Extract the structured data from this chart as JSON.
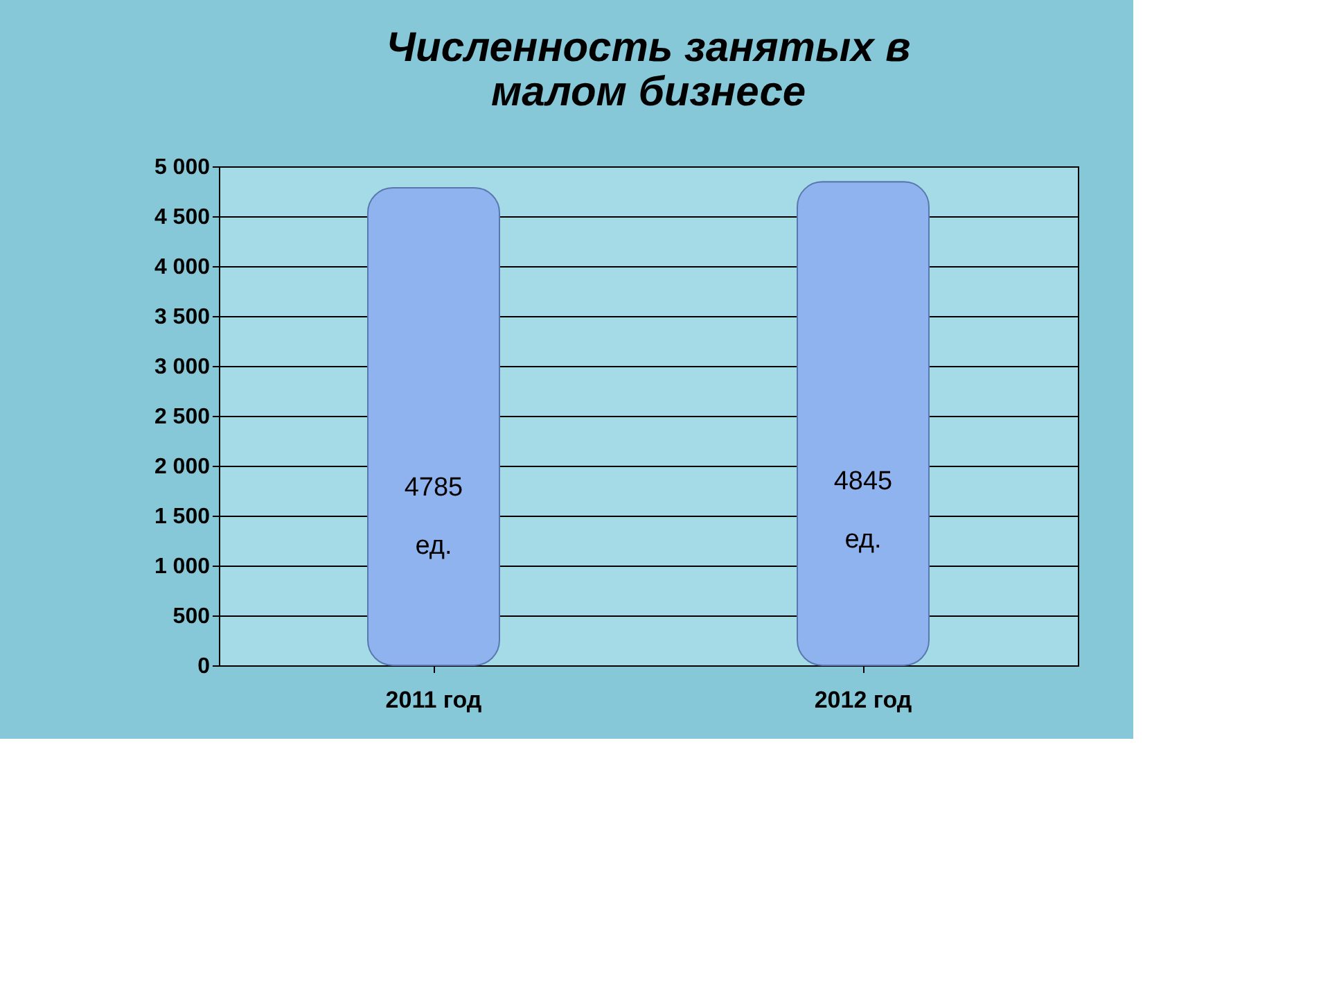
{
  "chart_data": {
    "type": "bar",
    "title": [
      "Численность занятых в",
      "малом бизнесе"
    ],
    "categories": [
      "2011 год",
      "2012 год"
    ],
    "values": [
      4785,
      4845
    ],
    "color": "#8fb3ef",
    "value_labels": [
      "4785\nед.",
      "4845\nед."
    ],
    "ylim": [
      0,
      5000
    ],
    "yticks": [
      0,
      500,
      {
        "value": 1000,
        "label": "1 000"
      },
      {
        "value": 1500,
        "label": "1 500"
      },
      {
        "value": 2000,
        "label": "2 000"
      },
      {
        "value": 2500,
        "label": "2 500"
      },
      {
        "value": 3000,
        "label": "3 000"
      },
      {
        "value": 3500,
        "label": "3 500"
      },
      {
        "value": 4000,
        "label": "4 000"
      },
      {
        "value": 4500,
        "label": "4 500"
      },
      {
        "value": 5000,
        "label": "5 000"
      }
    ],
    "grid": "y"
  }
}
